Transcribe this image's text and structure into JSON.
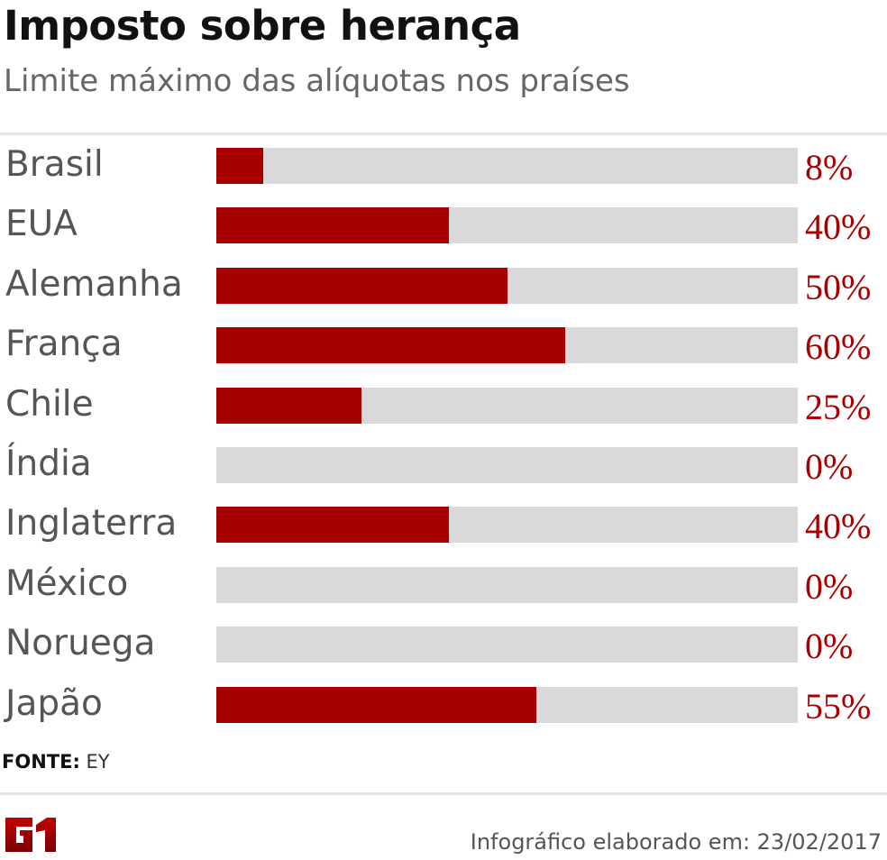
{
  "header": {
    "title": "Imposto sobre herança",
    "subtitle": "Limite máximo das alíquotas nos praíses"
  },
  "chart_data": {
    "type": "bar",
    "orientation": "horizontal",
    "title": "Imposto sobre herança",
    "subtitle": "Limite máximo das alíquotas nos praíses",
    "xlim": [
      0,
      100
    ],
    "unit": "%",
    "categories": [
      "Brasil",
      "EUA",
      "Alemanha",
      "França",
      "Chile",
      "Índia",
      "Inglaterra",
      "México",
      "Noruega",
      "Japão"
    ],
    "values": [
      8,
      40,
      50,
      60,
      25,
      0,
      40,
      0,
      0,
      55
    ],
    "value_labels": [
      "8%",
      "40%",
      "50%",
      "60%",
      "25%",
      "0%",
      "40%",
      "0%",
      "0%",
      "55%"
    ],
    "colors": {
      "bar": "#a80000",
      "track": "#d9d9d9",
      "value_text": "#a80000"
    }
  },
  "footer": {
    "source_label": "FONTE:",
    "source_value": "EY",
    "logo": "G1",
    "credit": "Infográfico elaborado em: 23/02/2017"
  }
}
